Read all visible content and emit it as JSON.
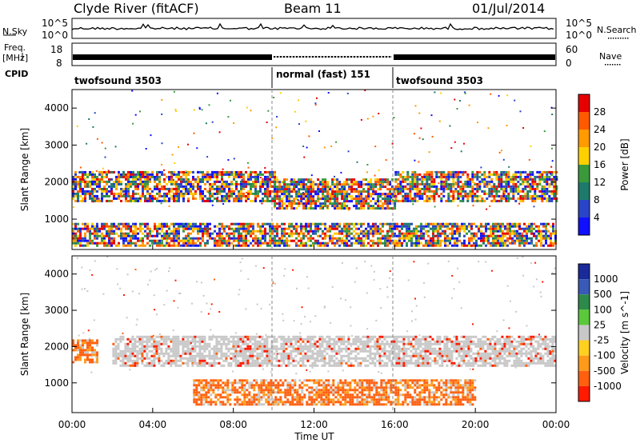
{
  "header": {
    "station": "Clyde River (fitACF)",
    "beam": "Beam 11",
    "date": "01/Jul/2014"
  },
  "left_labels": {
    "nsky": "N.Sky",
    "freq_line1": "Freq.",
    "freq_line2": "[MHz]",
    "cpid": "CPID"
  },
  "right_labels": {
    "nsearch": "N.Search",
    "nave": "Nave"
  },
  "scales": {
    "n_top": "10^5",
    "n_bottom": "10^0",
    "freq_top": "18",
    "freq_bottom": "8",
    "nave_top": "60",
    "nave_bottom": "0"
  },
  "cpid_segments": [
    {
      "label": "twofsound 3503",
      "start_hour": 0,
      "end_hour": 10
    },
    {
      "label": "normal (fast) 151",
      "start_hour": 10,
      "end_hour": 16
    },
    {
      "label": "twofsound 3503",
      "start_hour": 16,
      "end_hour": 24
    }
  ],
  "power_colorbar": {
    "title": "Power [dB]",
    "ticks": [
      "28",
      "24",
      "20",
      "16",
      "12",
      "8",
      "4"
    ],
    "colors": [
      "#e60000",
      "#ff5a00",
      "#ff9a00",
      "#ffd000",
      "#3a9a3a",
      "#1d7a6a",
      "#2a44c8",
      "#1010ff"
    ]
  },
  "velocity_colorbar": {
    "title": "Velocity [m s^-1]",
    "ticks": [
      "1000",
      "500",
      "100",
      "25",
      "-25",
      "-100",
      "-500",
      "-1000"
    ],
    "colors": [
      "#1a2a9a",
      "#3a5ab8",
      "#2e8a4a",
      "#5ac83a",
      "#c8c8c8",
      "#ffd020",
      "#ff9a1a",
      "#ff6010",
      "#ff1a00"
    ]
  },
  "chart_data": [
    {
      "type": "heatmap",
      "panel": "power",
      "title": "",
      "xlabel": "",
      "ylabel": "Slant Range [km]",
      "xlim": [
        0,
        24
      ],
      "ylim": [
        180,
        4500
      ],
      "x_ticks": [],
      "y_ticks": [
        "4000",
        "3000",
        "2000",
        "1000"
      ],
      "z_label": "Power [dB]",
      "z_range": [
        0,
        30
      ],
      "bands": [
        {
          "x": [
            0,
            10
          ],
          "y": [
            1500,
            2300
          ],
          "value": 20
        },
        {
          "x": [
            10,
            16
          ],
          "y": [
            1300,
            2100
          ],
          "value": 16
        },
        {
          "x": [
            16,
            24
          ],
          "y": [
            1500,
            2300
          ],
          "value": 12
        },
        {
          "x": [
            0,
            24
          ],
          "y": [
            300,
            900
          ],
          "value": 14
        }
      ]
    },
    {
      "type": "heatmap",
      "panel": "velocity",
      "title": "",
      "xlabel": "Time UT",
      "ylabel": "Slant Range [km]",
      "xlim": [
        0,
        24
      ],
      "ylim": [
        180,
        4500
      ],
      "x_ticks": [
        "00:00",
        "04:00",
        "08:00",
        "12:00",
        "16:00",
        "20:00",
        "00:00"
      ],
      "y_ticks": [
        "4000",
        "3000",
        "2000",
        "1000"
      ],
      "z_label": "Velocity [m s^-1]",
      "z_range": [
        -1000,
        1000
      ],
      "bands": [
        {
          "x": [
            2,
            24
          ],
          "y": [
            1500,
            2300
          ],
          "value": 0
        },
        {
          "x": [
            0,
            1.2
          ],
          "y": [
            1600,
            2200
          ],
          "value": -500
        },
        {
          "x": [
            6,
            20
          ],
          "y": [
            400,
            1100
          ],
          "value": -300
        }
      ]
    }
  ]
}
